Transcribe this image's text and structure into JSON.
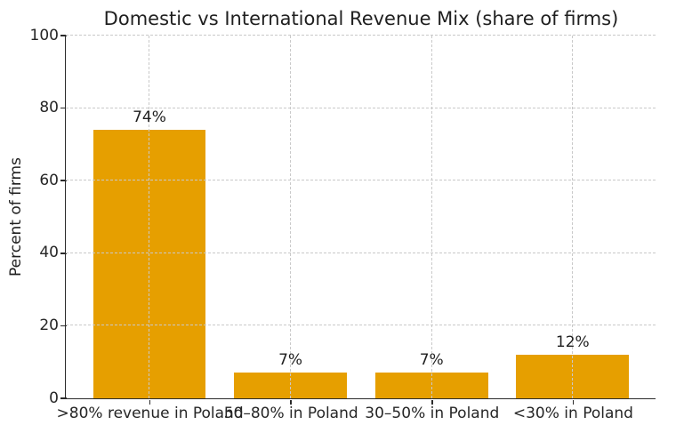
{
  "chart_data": {
    "type": "bar",
    "title": "Domestic vs International Revenue Mix (share of firms)",
    "ylabel": "Percent of firms",
    "xlabel": "",
    "categories": [
      ">80% revenue in Poland",
      "50–80% in Poland",
      "30–50% in Poland",
      "<30% in Poland"
    ],
    "values": [
      74,
      7,
      7,
      12
    ],
    "bar_labels": [
      "74%",
      "7%",
      "7%",
      "12%"
    ],
    "ylim": [
      0,
      100
    ],
    "yticks": [
      0,
      20,
      40,
      60,
      80,
      100
    ],
    "xlim": [
      -0.59,
      3.59
    ],
    "bar_width_units": 0.8,
    "grid": "dashed, horizontal at y-ticks and vertical at category centers, drawn over bars",
    "legend": "none",
    "colors": {
      "bar": "#E69F00",
      "grid": "#c9c9c9",
      "axis": "#2b2b2b",
      "text": "#1f1f1f",
      "background": "#ffffff"
    }
  }
}
